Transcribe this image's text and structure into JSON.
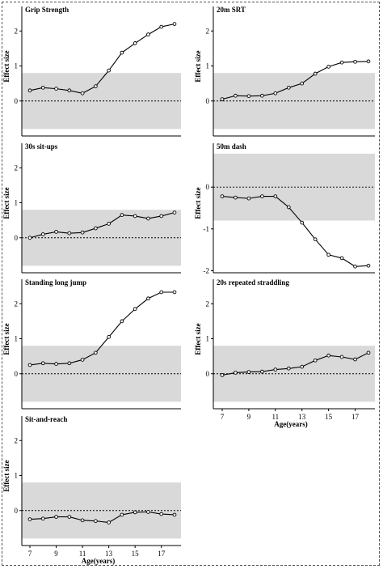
{
  "colors": {
    "band": "#d9d9d9",
    "line": "#000000",
    "marker_fill": "#ffffff"
  },
  "chart_data": [
    {
      "type": "line",
      "title": "Grip Strength",
      "ylabel": "Effect size",
      "xlabel": "",
      "x": [
        7,
        8,
        9,
        10,
        11,
        12,
        13,
        14,
        15,
        16,
        17,
        18
      ],
      "values": [
        0.3,
        0.38,
        0.35,
        0.3,
        0.22,
        0.42,
        0.87,
        1.38,
        1.65,
        1.9,
        2.12,
        2.2
      ],
      "band": [
        -0.8,
        0.8
      ],
      "reference_line": 0,
      "ylim": [
        -1,
        2.7
      ],
      "yticks": [
        0,
        1,
        2
      ],
      "xticks": [],
      "xlim": [
        6.8,
        18.4
      ]
    },
    {
      "type": "line",
      "title": "20m SRT",
      "ylabel": "Effect size",
      "xlabel": "",
      "x": [
        7,
        8,
        9,
        10,
        11,
        12,
        13,
        14,
        15,
        16,
        17,
        18
      ],
      "values": [
        0.05,
        0.15,
        0.14,
        0.15,
        0.22,
        0.38,
        0.5,
        0.78,
        0.98,
        1.1,
        1.12,
        1.13
      ],
      "band": [
        -0.8,
        0.8
      ],
      "reference_line": 0,
      "ylim": [
        -1,
        2.7
      ],
      "yticks": [
        0,
        1,
        2
      ],
      "xticks": [],
      "xlim": [
        6.8,
        18.4
      ]
    },
    {
      "type": "line",
      "title": "30s sit-ups",
      "ylabel": "Effect size",
      "xlabel": "",
      "x": [
        7,
        8,
        9,
        10,
        11,
        12,
        13,
        14,
        15,
        16,
        17,
        18
      ],
      "values": [
        0.0,
        0.1,
        0.17,
        0.13,
        0.15,
        0.27,
        0.4,
        0.65,
        0.62,
        0.55,
        0.62,
        0.72
      ],
      "band": [
        -0.8,
        0.8
      ],
      "reference_line": 0,
      "ylim": [
        -1,
        2.7
      ],
      "yticks": [
        0,
        1,
        2
      ],
      "xticks": [],
      "xlim": [
        6.8,
        18.4
      ]
    },
    {
      "type": "line",
      "title": "50m dash",
      "ylabel": "Effect size",
      "xlabel": "",
      "x": [
        7,
        8,
        9,
        10,
        11,
        12,
        13,
        14,
        15,
        16,
        17,
        18
      ],
      "values": [
        -0.22,
        -0.25,
        -0.27,
        -0.22,
        -0.22,
        -0.48,
        -0.85,
        -1.25,
        -1.62,
        -1.7,
        -1.9,
        -1.88
      ],
      "band": [
        -0.8,
        0.8
      ],
      "reference_line": 0,
      "ylim": [
        -2.05,
        1.05
      ],
      "yticks": [
        -2,
        -1,
        0
      ],
      "xticks": [],
      "xlim": [
        6.8,
        18.4
      ]
    },
    {
      "type": "line",
      "title": "Standing long jump",
      "ylabel": "Effect size",
      "xlabel": "",
      "x": [
        7,
        8,
        9,
        10,
        11,
        12,
        13,
        14,
        15,
        16,
        17,
        18
      ],
      "values": [
        0.25,
        0.3,
        0.28,
        0.3,
        0.4,
        0.6,
        1.05,
        1.5,
        1.85,
        2.15,
        2.33,
        2.33
      ],
      "band": [
        -0.8,
        0.8
      ],
      "reference_line": 0,
      "ylim": [
        -1,
        2.7
      ],
      "yticks": [
        0,
        1,
        2
      ],
      "xticks": [],
      "xlim": [
        6.8,
        18.4
      ]
    },
    {
      "type": "line",
      "title": "20s repeated straddling",
      "ylabel": "Effect size",
      "xlabel": "Age(years)",
      "x": [
        7,
        8,
        9,
        10,
        11,
        12,
        13,
        14,
        15,
        16,
        17,
        18
      ],
      "values": [
        -0.04,
        0.03,
        0.05,
        0.06,
        0.12,
        0.15,
        0.2,
        0.38,
        0.52,
        0.48,
        0.41,
        0.6
      ],
      "band": [
        -0.8,
        0.8
      ],
      "reference_line": 0,
      "ylim": [
        -1,
        2.7
      ],
      "yticks": [
        0,
        1,
        2
      ],
      "xticks": [
        7,
        9,
        11,
        13,
        15,
        17
      ],
      "xlim": [
        6.8,
        18.4
      ]
    },
    {
      "type": "line",
      "title": "Sit-and-reach",
      "ylabel": "Effect size",
      "xlabel": "Age(years)",
      "x": [
        7,
        8,
        9,
        10,
        11,
        12,
        13,
        14,
        15,
        16,
        17,
        18
      ],
      "values": [
        -0.25,
        -0.23,
        -0.18,
        -0.18,
        -0.28,
        -0.3,
        -0.34,
        -0.12,
        -0.05,
        -0.04,
        -0.1,
        -0.12
      ],
      "band": [
        -0.8,
        0.8
      ],
      "reference_line": 0,
      "ylim": [
        -1,
        2.7
      ],
      "yticks": [
        0,
        1,
        2
      ],
      "xticks": [
        7,
        9,
        11,
        13,
        15,
        17
      ],
      "xlim": [
        6.8,
        18.4
      ]
    }
  ]
}
